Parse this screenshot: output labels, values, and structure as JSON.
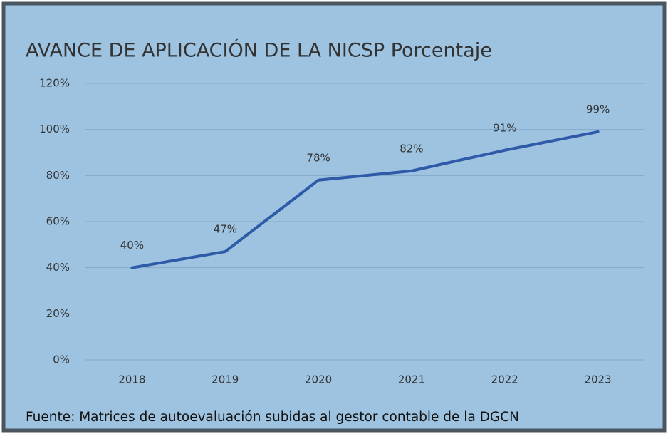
{
  "chart_data": {
    "type": "line",
    "title": "AVANCE DE APLICACIÓN DE LA NICSP Porcentaje",
    "categories": [
      "2018",
      "2019",
      "2020",
      "2021",
      "2022",
      "2023"
    ],
    "values": [
      40,
      47,
      78,
      82,
      91,
      99
    ],
    "value_labels": [
      "40%",
      "47%",
      "78%",
      "82%",
      "91%",
      "99%"
    ],
    "color": "#2f5aa8",
    "ylim": [
      0,
      120
    ],
    "yticks": [
      {
        "value": 0,
        "label": "0%"
      },
      {
        "value": 20,
        "label": "20%"
      },
      {
        "value": 40,
        "label": "40%"
      },
      {
        "value": 60,
        "label": "60%"
      },
      {
        "value": 80,
        "label": "80%"
      },
      {
        "value": 100,
        "label": "100%"
      },
      {
        "value": 120,
        "label": "120%"
      }
    ],
    "grid": true,
    "source": "Fuente: Matrices de autoevaluación subidas al gestor contable de la DGCN"
  }
}
